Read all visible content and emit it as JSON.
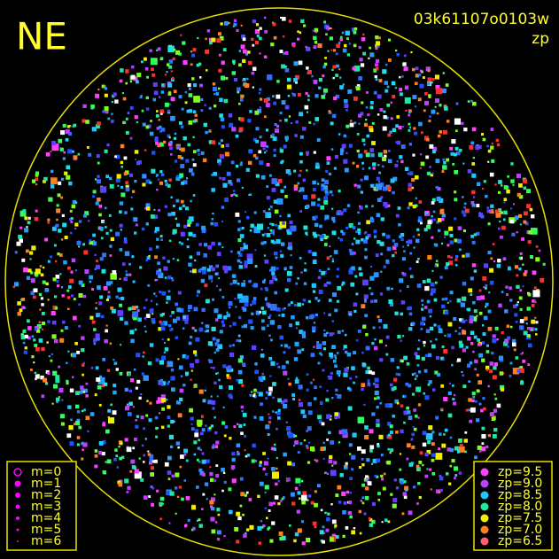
{
  "header": {
    "direction": "NE",
    "frame_id": "03k61107o0103w",
    "color_key": "zp"
  },
  "legend_magnitude": {
    "items": [
      "m=0",
      "m=1",
      "m=2",
      "m=3",
      "m=4",
      "m=5",
      "m=6"
    ],
    "color": "#ff00ff"
  },
  "legend_zp": {
    "items": [
      {
        "label": "zp=9.5",
        "color": "#ff40ff"
      },
      {
        "label": "zp=9.0",
        "color": "#c040ff"
      },
      {
        "label": "zp=8.5",
        "color": "#20c8ff"
      },
      {
        "label": "zp=8.0",
        "color": "#20e8a0"
      },
      {
        "label": "zp=7.5",
        "color": "#f0f000"
      },
      {
        "label": "zp=7.0",
        "color": "#ff8020"
      },
      {
        "label": "zp=6.5",
        "color": "#ff6070"
      }
    ]
  }
}
